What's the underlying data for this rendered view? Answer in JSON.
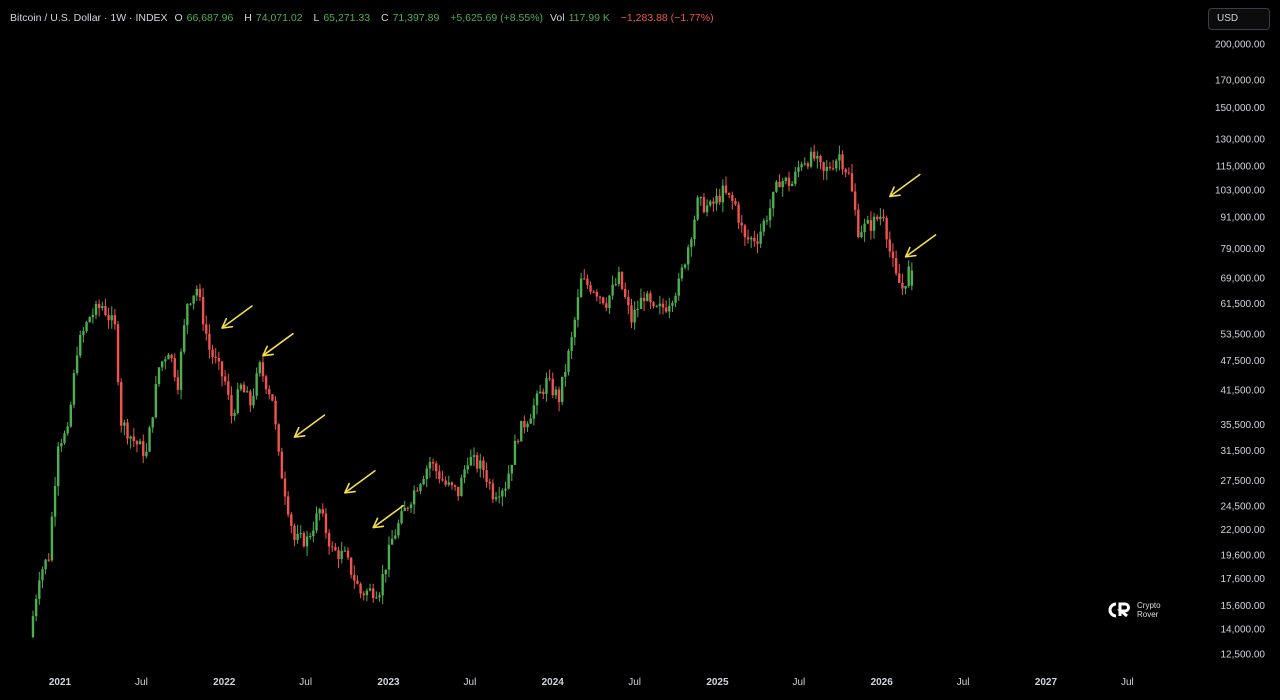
{
  "header": {
    "symbol": "Bitcoin / U.S. Dollar · 1W · INDEX",
    "o_label": "O",
    "o_value": "66,687.96",
    "h_label": "H",
    "h_value": "74,071.02",
    "l_label": "L",
    "l_value": "65,271.33",
    "c_label": "C",
    "c_value": "71,397.89",
    "change": "+5,625.69 (+8.55%)",
    "vol_label": "Vol",
    "vol_value": "117.99 K",
    "vol_change": "−1,283.88 (−1.77%)"
  },
  "currency_button": "USD",
  "logo": {
    "text": "Crypto\nRover",
    "mark": "CR"
  },
  "colors": {
    "up": "#4caf50",
    "down": "#ef5350",
    "arrow": "#f5e04a",
    "background": "#000000"
  },
  "chart_data": {
    "type": "candlestick",
    "scale": "log",
    "interval": "1W",
    "y_ticks": [
      "200,000.00",
      "170,000.00",
      "150,000.00",
      "130,000.00",
      "115,000.00",
      "103,000.00",
      "91,000.00",
      "79,000.00",
      "69,000.00",
      "61,500.00",
      "53,500.00",
      "47,500.00",
      "41,500.00",
      "35,500.00",
      "31,500.00",
      "27,500.00",
      "24,500.00",
      "22,000.00",
      "19,600.00",
      "17,600.00",
      "15,600.00",
      "14,000.00",
      "12,500.00"
    ],
    "y_tick_values": [
      200000,
      170000,
      150000,
      130000,
      115000,
      103000,
      91000,
      79000,
      69000,
      61500,
      53500,
      47500,
      41500,
      35500,
      31500,
      27500,
      24500,
      22000,
      19600,
      17600,
      15600,
      14000,
      12500
    ],
    "x_ticks": [
      {
        "label": "2021",
        "date": "2021-01-01",
        "year": true
      },
      {
        "label": "Jul",
        "date": "2021-07-01",
        "year": false
      },
      {
        "label": "2022",
        "date": "2022-01-01",
        "year": true
      },
      {
        "label": "Jul",
        "date": "2022-07-01",
        "year": false
      },
      {
        "label": "2023",
        "date": "2023-01-01",
        "year": true
      },
      {
        "label": "Jul",
        "date": "2023-07-01",
        "year": false
      },
      {
        "label": "2024",
        "date": "2024-01-01",
        "year": true
      },
      {
        "label": "Jul",
        "date": "2024-07-01",
        "year": false
      },
      {
        "label": "2025",
        "date": "2025-01-01",
        "year": true
      },
      {
        "label": "Jul",
        "date": "2025-07-01",
        "year": false
      },
      {
        "label": "2026",
        "date": "2026-01-01",
        "year": true
      },
      {
        "label": "Jul",
        "date": "2026-07-01",
        "year": false
      },
      {
        "label": "2027",
        "date": "2027-01-01",
        "year": true
      },
      {
        "label": "Jul",
        "date": "2027-07-01",
        "year": false
      }
    ],
    "price_path": [
      [
        "2020-11-02",
        13500
      ],
      [
        "2020-11-23",
        18000
      ],
      [
        "2020-12-14",
        19500
      ],
      [
        "2021-01-04",
        33000
      ],
      [
        "2021-01-25",
        34000
      ],
      [
        "2021-02-15",
        50000
      ],
      [
        "2021-03-15",
        58000
      ],
      [
        "2021-04-12",
        61000
      ],
      [
        "2021-05-10",
        55000
      ],
      [
        "2021-05-24",
        36000
      ],
      [
        "2021-06-21",
        33000
      ],
      [
        "2021-07-19",
        31000
      ],
      [
        "2021-08-16",
        46000
      ],
      [
        "2021-09-06",
        50000
      ],
      [
        "2021-09-27",
        43000
      ],
      [
        "2021-10-18",
        62000
      ],
      [
        "2021-11-08",
        66000
      ],
      [
        "2021-12-06",
        50000
      ],
      [
        "2022-01-10",
        43000
      ],
      [
        "2022-01-24",
        37000
      ],
      [
        "2022-02-14",
        42000
      ],
      [
        "2022-03-07",
        39000
      ],
      [
        "2022-03-28",
        46000
      ],
      [
        "2022-04-25",
        40000
      ],
      [
        "2022-05-09",
        30500
      ],
      [
        "2022-06-13",
        21000
      ],
      [
        "2022-07-11",
        21000
      ],
      [
        "2022-08-08",
        24000
      ],
      [
        "2022-09-05",
        20000
      ],
      [
        "2022-10-03",
        19500
      ],
      [
        "2022-11-07",
        16500
      ],
      [
        "2022-12-19",
        16800
      ],
      [
        "2023-01-16",
        21000
      ],
      [
        "2023-02-13",
        24000
      ],
      [
        "2023-03-13",
        27000
      ],
      [
        "2023-04-10",
        30000
      ],
      [
        "2023-05-15",
        27000
      ],
      [
        "2023-06-12",
        26000
      ],
      [
        "2023-07-03",
        30500
      ],
      [
        "2023-08-07",
        29000
      ],
      [
        "2023-08-28",
        26000
      ],
      [
        "2023-09-25",
        27000
      ],
      [
        "2023-10-23",
        34000
      ],
      [
        "2023-11-20",
        37500
      ],
      [
        "2023-12-25",
        43000
      ],
      [
        "2024-01-22",
        40000
      ],
      [
        "2024-02-19",
        52000
      ],
      [
        "2024-03-11",
        68000
      ],
      [
        "2024-04-08",
        66000
      ],
      [
        "2024-05-06",
        62000
      ],
      [
        "2024-06-03",
        69000
      ],
      [
        "2024-07-01",
        57000
      ],
      [
        "2024-07-29",
        64000
      ],
      [
        "2024-08-19",
        59000
      ],
      [
        "2024-09-16",
        61000
      ],
      [
        "2024-10-14",
        67000
      ],
      [
        "2024-11-04",
        80000
      ],
      [
        "2024-11-25",
        97000
      ],
      [
        "2024-12-23",
        95000
      ],
      [
        "2025-01-20",
        102000
      ],
      [
        "2025-02-17",
        96000
      ],
      [
        "2025-03-10",
        82000
      ],
      [
        "2025-04-07",
        83000
      ],
      [
        "2025-05-05",
        95000
      ],
      [
        "2025-05-26",
        108000
      ],
      [
        "2025-06-23",
        106000
      ],
      [
        "2025-07-14",
        118000
      ],
      [
        "2025-08-11",
        119000
      ],
      [
        "2025-09-01",
        111000
      ],
      [
        "2025-10-06",
        121000
      ],
      [
        "2025-10-27",
        110000
      ],
      [
        "2025-11-17",
        86000
      ],
      [
        "2025-12-15",
        88000
      ],
      [
        "2026-01-12",
        93000
      ],
      [
        "2026-01-26",
        78000
      ],
      [
        "2026-02-09",
        69000
      ],
      [
        "2026-02-23",
        66000
      ],
      [
        "2026-03-09",
        71397.89
      ]
    ],
    "last_candle": {
      "open": 66687.96,
      "high": 74071.02,
      "low": 65271.33,
      "close": 71397.89
    },
    "annotations": [
      {
        "type": "arrow",
        "date": "2021-12-27",
        "price": 55000
      },
      {
        "type": "arrow",
        "date": "2022-03-28",
        "price": 48500
      },
      {
        "type": "arrow",
        "date": "2022-06-06",
        "price": 33500
      },
      {
        "type": "arrow",
        "date": "2022-09-26",
        "price": 26000
      },
      {
        "type": "arrow",
        "date": "2022-11-28",
        "price": 22200
      },
      {
        "type": "arrow",
        "date": "2026-01-19",
        "price": 100000
      },
      {
        "type": "arrow",
        "date": "2026-02-23",
        "price": 76000
      }
    ]
  }
}
